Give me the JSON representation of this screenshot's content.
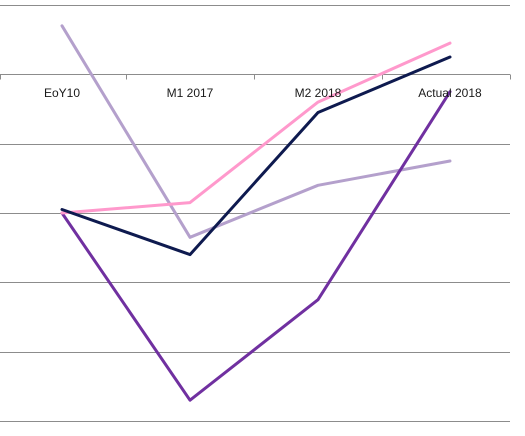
{
  "chart_data": {
    "type": "line",
    "categories": [
      "EoY10",
      "M1 2017",
      "M2 2018",
      "Actual 2018"
    ],
    "ylim": [
      0,
      6
    ],
    "gridlines": [
      0,
      1,
      2,
      3,
      4,
      5,
      6
    ],
    "grid": true,
    "legend": "none",
    "series": [
      {
        "color": "#b4a0cc",
        "values": [
          5.7,
          2.65,
          3.4,
          3.75
        ]
      },
      {
        "color": "#7030a0",
        "values": [
          3.0,
          0.3,
          1.75,
          4.75
        ]
      },
      {
        "color": "#ff99cc",
        "values": [
          3.0,
          3.15,
          4.6,
          5.45
        ]
      },
      {
        "color": "#0e1a4f",
        "values": [
          3.05,
          2.4,
          4.45,
          5.25
        ]
      }
    ]
  }
}
